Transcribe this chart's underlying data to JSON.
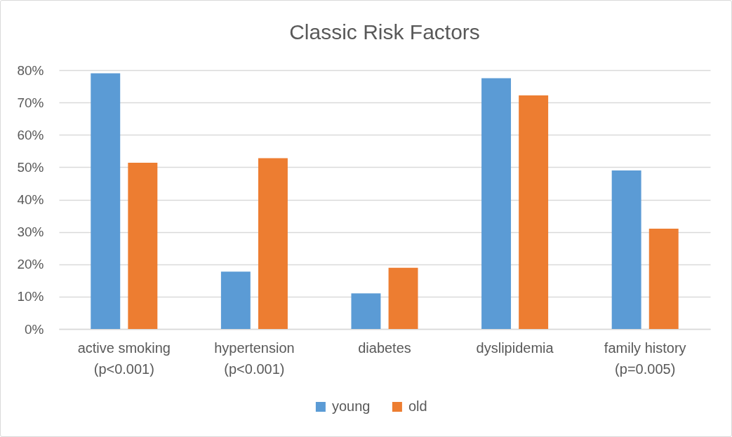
{
  "chart_data": {
    "type": "bar",
    "title": "Classic Risk Factors",
    "categories": [
      "active smoking\n(p<0.001)",
      "hypertension\n(p<0.001)",
      "diabetes",
      "dyslipidemia",
      "family history\n(p=0.005)"
    ],
    "series": [
      {
        "name": "young",
        "color": "#5b9bd5",
        "values": [
          79,
          17.7,
          11,
          77.5,
          49
        ]
      },
      {
        "name": "old",
        "color": "#ed7d31",
        "values": [
          51.4,
          52.8,
          18.9,
          72.2,
          31
        ]
      }
    ],
    "ylim": [
      0,
      80
    ],
    "yticks": [
      {
        "value": 0,
        "label": "0%"
      },
      {
        "value": 10,
        "label": "10%"
      },
      {
        "value": 20,
        "label": "20%"
      },
      {
        "value": 30,
        "label": "30%"
      },
      {
        "value": 40,
        "label": "40%"
      },
      {
        "value": 50,
        "label": "50%"
      },
      {
        "value": 60,
        "label": "60%"
      },
      {
        "value": 70,
        "label": "70%"
      },
      {
        "value": 80,
        "label": "80%"
      }
    ],
    "grid": "y",
    "legend": "bottom"
  }
}
